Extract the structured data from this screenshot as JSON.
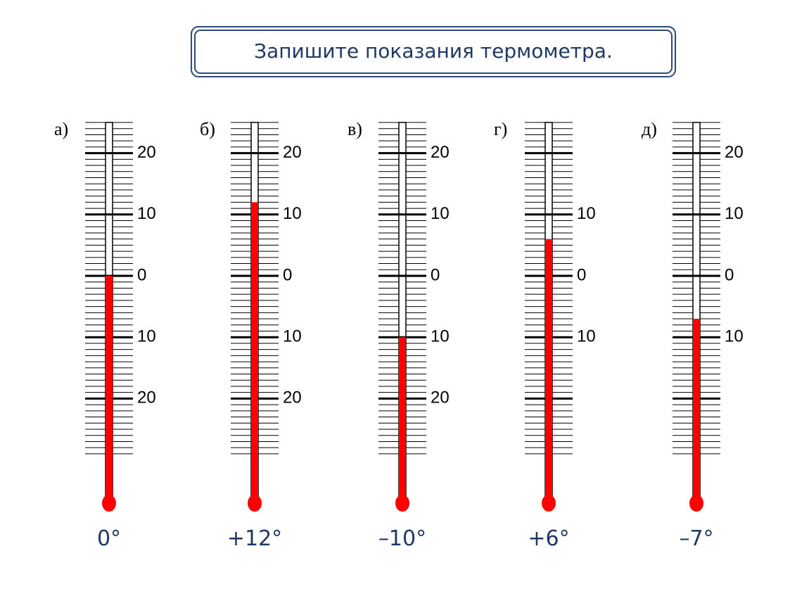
{
  "title": "Запишите показания термометра.",
  "thermometers": [
    {
      "letter": "а)",
      "reading": 0,
      "answer": "0°",
      "ylim": [
        -29,
        25
      ],
      "yticks": [
        20,
        10,
        0,
        {
          "value": -10,
          "label": "10"
        },
        {
          "value": -20,
          "label": "20"
        }
      ]
    },
    {
      "letter": "б)",
      "reading": 12,
      "answer": "+12°",
      "ylim": [
        -29,
        25
      ],
      "yticks": [
        20,
        10,
        0,
        {
          "value": -10,
          "label": "10"
        },
        {
          "value": -20,
          "label": "20"
        }
      ]
    },
    {
      "letter": "в)",
      "reading": -10,
      "answer": "–10°",
      "ylim": [
        -29,
        25
      ],
      "yticks": [
        20,
        10,
        0,
        {
          "value": -10,
          "label": "10"
        },
        {
          "value": -20,
          "label": "20"
        }
      ]
    },
    {
      "letter": "г)",
      "reading": 6,
      "answer": "+6°",
      "ylim": [
        -29,
        25
      ],
      "yticks": [
        {
          "value": 20
        },
        10,
        0,
        {
          "value": -10,
          "label": "10"
        },
        {
          "value": -20
        }
      ]
    },
    {
      "letter": "д)",
      "reading": -7,
      "answer": "–7°",
      "ylim": [
        -29,
        25
      ],
      "yticks": [
        20,
        10,
        0,
        {
          "value": -10,
          "label": "10"
        },
        {
          "value": -20
        }
      ]
    }
  ]
}
